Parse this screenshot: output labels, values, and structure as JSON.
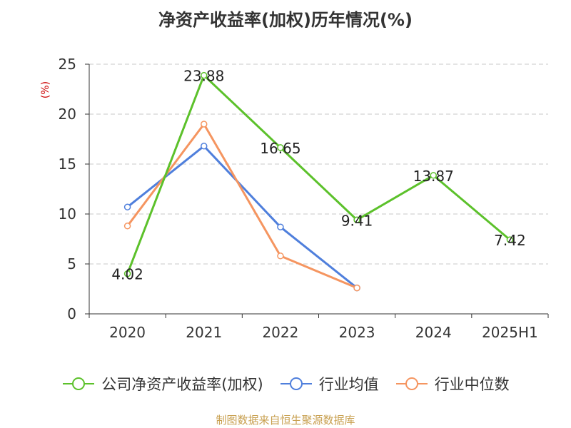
{
  "chart_data": {
    "type": "line",
    "title": "净资产收益率(加权)历年情况(%)",
    "ylabel": "(%)",
    "categories": [
      "2020",
      "2021",
      "2022",
      "2023",
      "2024",
      "2025H1"
    ],
    "yticks": [
      "0",
      "5",
      "10",
      "15",
      "20",
      "25"
    ],
    "ylim": [
      0,
      25
    ],
    "grid": true,
    "legend_position": "bottom",
    "series": [
      {
        "name": "公司净资产收益率(加权)",
        "color": "#5cc12b",
        "values": [
          4.02,
          23.88,
          16.65,
          9.41,
          13.87,
          7.42
        ],
        "labels": [
          "4.02",
          "23.88",
          "16.65",
          "9.41",
          "13.87",
          "7.42"
        ]
      },
      {
        "name": "行业均值",
        "color": "#4f7fdc",
        "values": [
          10.7,
          16.8,
          8.7,
          2.6,
          null,
          null
        ]
      },
      {
        "name": "行业中位数",
        "color": "#f59560",
        "values": [
          8.8,
          19.0,
          5.8,
          2.6,
          null,
          null
        ]
      }
    ]
  },
  "footer": {
    "source": "制图数据来自恒生聚源数据库"
  }
}
